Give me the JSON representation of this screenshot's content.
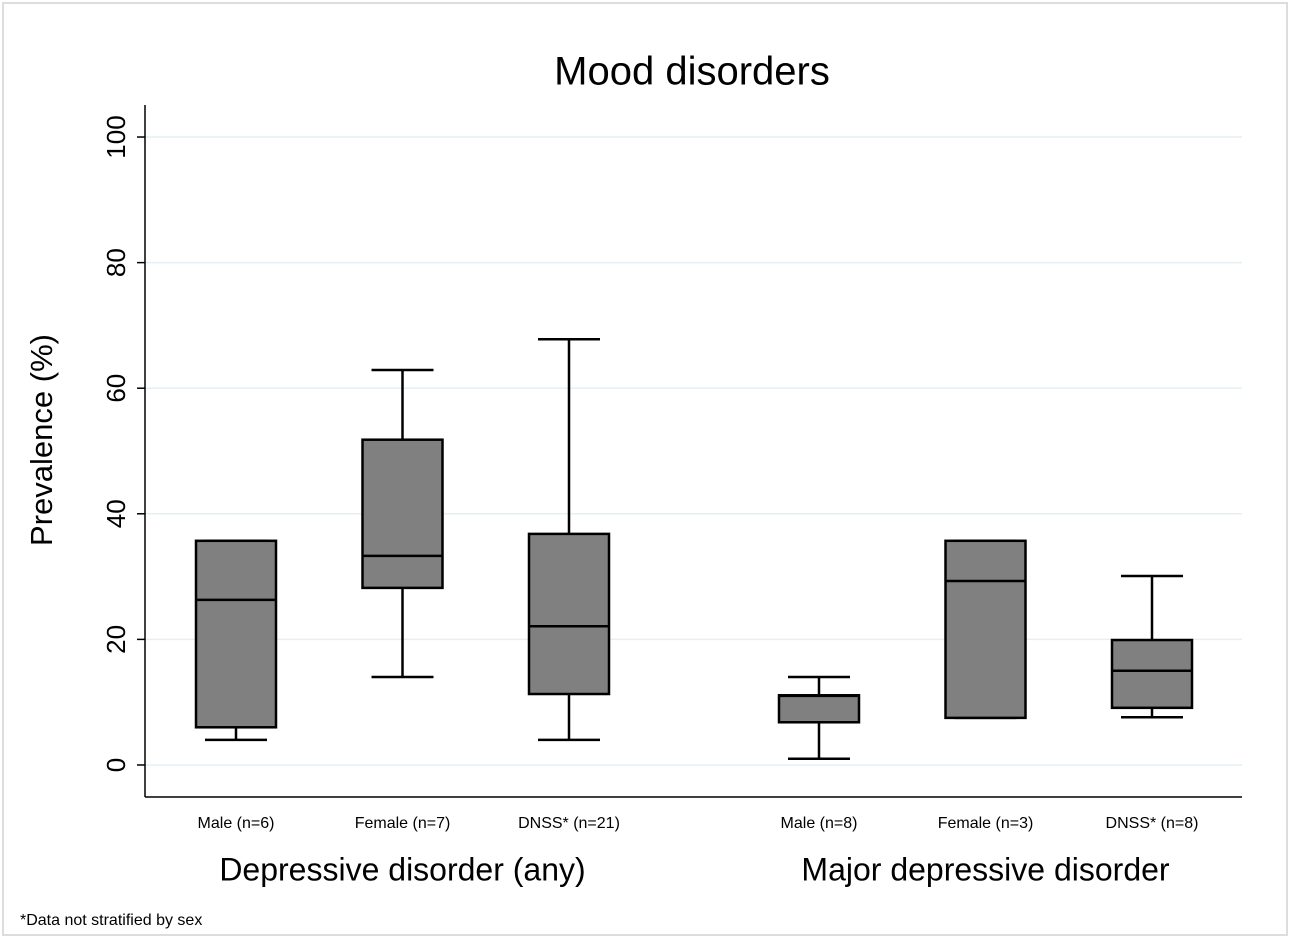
{
  "chart_data": {
    "type": "box",
    "title": "Mood disorders",
    "y_label": "Prevalence (%)",
    "ylim": [
      -5.1,
      105.1
    ],
    "yticks": [
      0,
      20,
      40,
      60,
      80,
      100
    ],
    "grid": true,
    "color": "#808080",
    "groups": [
      {
        "name": "Depressive disorder (any)",
        "categories": [
          "Male (n=6)",
          "Female (n=7)",
          "DNSS* (n=21)"
        ],
        "boxes": [
          {
            "min": 4,
            "q1": 6,
            "median": 26.3,
            "q3": 35.7,
            "max": 35.7
          },
          {
            "min": 14,
            "q1": 28.2,
            "median": 33.3,
            "q3": 51.8,
            "max": 62.9
          },
          {
            "min": 4,
            "q1": 11.3,
            "median": 22.1,
            "q3": 36.8,
            "max": 67.8
          }
        ]
      },
      {
        "name": "Major depressive disorder",
        "categories": [
          "Male (n=8)",
          "Female (n=3)",
          "DNSS* (n=8)"
        ],
        "boxes": [
          {
            "min": 1,
            "q1": 6.8,
            "median": 11,
            "q3": 11.1,
            "max": 14
          },
          {
            "min": 7.5,
            "q1": 7.5,
            "median": 29.3,
            "q3": 35.7,
            "max": 35.7
          },
          {
            "min": 7.6,
            "q1": 9.1,
            "median": 15,
            "q3": 19.9,
            "max": 30.1
          }
        ]
      }
    ],
    "footnote": "*Data not stratified by sex"
  }
}
